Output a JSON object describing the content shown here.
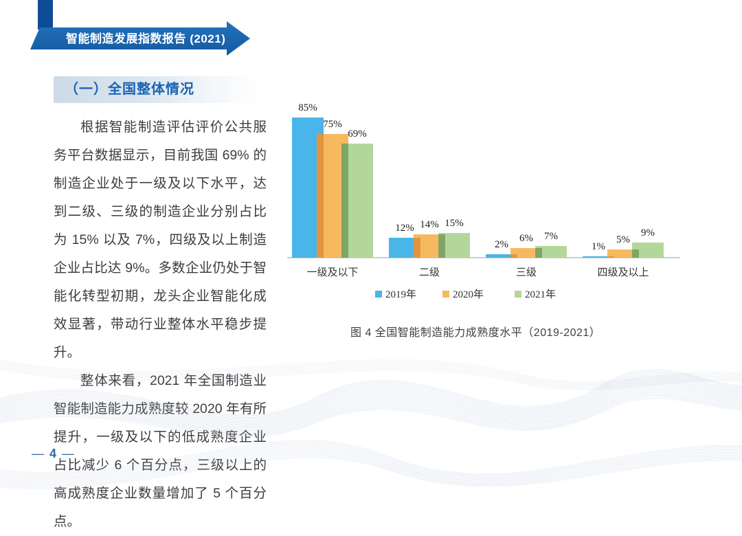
{
  "header": {
    "banner_title": "智能制造发展指数报告 (2021)",
    "colors": {
      "ribbon_dark": "#0F4C96",
      "banner_top": "#2273BE",
      "banner_bottom": "#15599F"
    }
  },
  "section": {
    "title": "（一）全国整体情况",
    "title_color": "#1A64B5"
  },
  "paragraphs": [
    "根据智能制造评估评价公共服务平台数据显示，目前我国 69% 的制造企业处于一级及以下水平，达到二级、三级的制造企业分别占比为 15% 以及 7%，四级及以上制造企业占比达 9%。多数企业仍处于智能化转型初期，龙头企业智能化成效显著，带动行业整体水平稳步提升。",
    "整体来看，2021 年全国制造业智能制造能力成熟度较 2020 年有所提升，一级及以下的低成熟度企业占比减少 6 个百分点，三级以上的高成熟度企业数量增加了 5 个百分点。"
  ],
  "chart_data": {
    "type": "bar",
    "title": "",
    "xlabel": "",
    "ylabel": "",
    "categories": [
      "一级及以下",
      "二级",
      "三级",
      "四级及以上"
    ],
    "series": [
      {
        "name": "2019年",
        "color": "#4AB5E8",
        "overlap_color": "#4AB5E8",
        "values": [
          85,
          12,
          2,
          1
        ]
      },
      {
        "name": "2020年",
        "color": "#F7B95F",
        "overlap_color": "#E2953E",
        "values": [
          75,
          14,
          6,
          5
        ]
      },
      {
        "name": "2021年",
        "color": "#B3D79B",
        "overlap_color": "#80A566",
        "values": [
          69,
          15,
          7,
          9
        ]
      }
    ],
    "value_suffix": "%",
    "ylim": [
      0,
      100
    ],
    "grid": false,
    "legend_position": "bottom",
    "axis_color": "#C9CED3"
  },
  "figure": {
    "caption": "图 4  全国智能制造能力成熟度水平（2019-2021）"
  },
  "footer": {
    "dash": "—",
    "page_number": "4"
  }
}
